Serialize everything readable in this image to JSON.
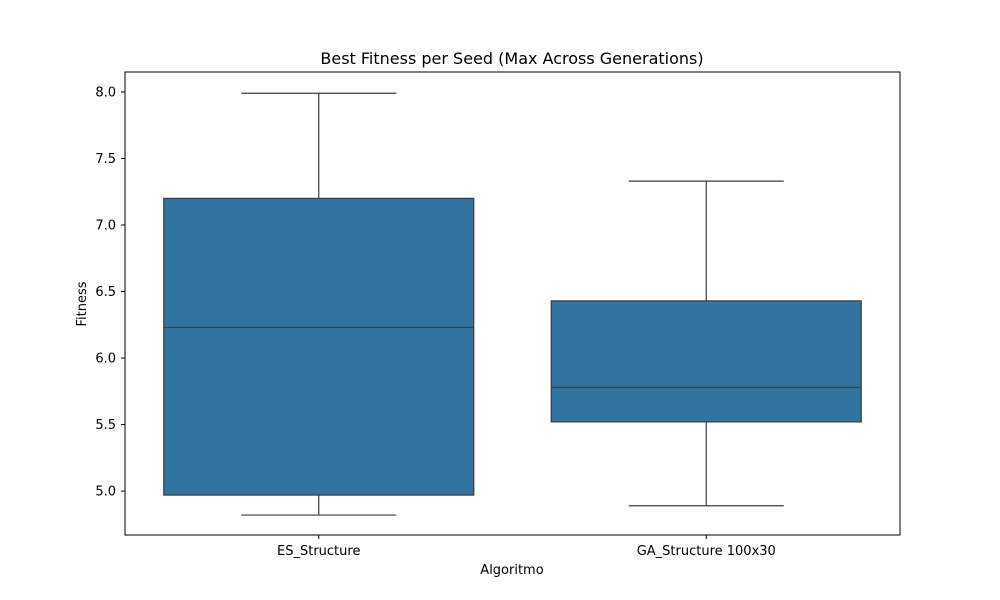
{
  "chart_data": {
    "type": "box",
    "title": "Best Fitness per Seed (Max Across Generations)",
    "xlabel": "Algoritmo",
    "ylabel": "Fitness",
    "ylim": [
      4.67,
      8.15
    ],
    "yticks": [
      5.0,
      5.5,
      6.0,
      6.5,
      7.0,
      7.5,
      8.0
    ],
    "ytick_labels": [
      "5.0",
      "5.5",
      "6.0",
      "6.5",
      "7.0",
      "7.5",
      "8.0"
    ],
    "grid": false,
    "legend": "none",
    "categories": [
      "ES_Structure",
      "GA_Structure 100x30"
    ],
    "boxes": [
      {
        "category": "ES_Structure",
        "whisker_low": 4.82,
        "q1": 4.97,
        "median": 6.23,
        "q3": 7.2,
        "whisker_high": 7.99
      },
      {
        "category": "GA_Structure 100x30",
        "whisker_low": 4.89,
        "q1": 5.52,
        "median": 5.78,
        "q3": 6.43,
        "whisker_high": 7.33
      }
    ],
    "colors": {
      "box_fill": "#3274a1",
      "line": "#3d3d3d",
      "axis": "#000000"
    }
  }
}
